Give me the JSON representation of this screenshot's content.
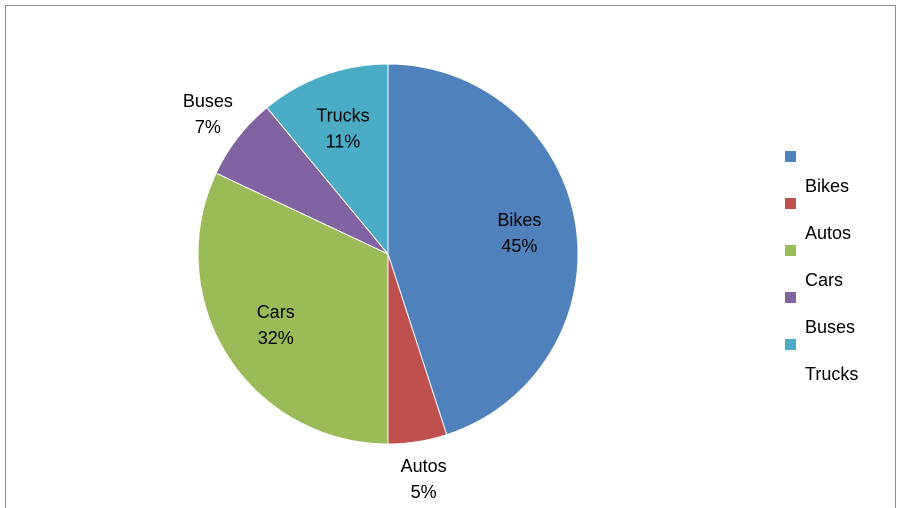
{
  "chart_data": {
    "type": "pie",
    "categories": [
      "Bikes",
      "Autos",
      "Cars",
      "Buses",
      "Trucks"
    ],
    "values": [
      45,
      5,
      32,
      7,
      11
    ],
    "value_labels": [
      "45%",
      "5%",
      "32%",
      "7%",
      "11%"
    ],
    "colors": [
      "#4f81bd",
      "#c0504d",
      "#9bbb59",
      "#8064a2",
      "#4bacc6"
    ],
    "legend": "right"
  }
}
